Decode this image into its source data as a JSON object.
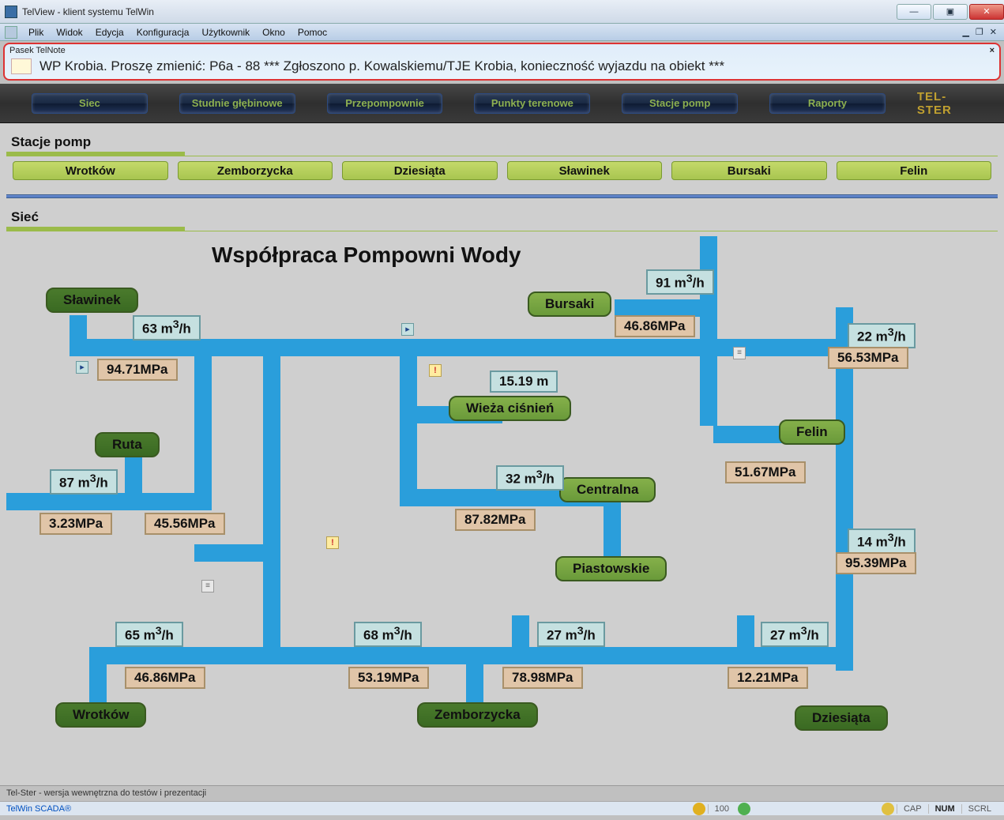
{
  "window": {
    "title": "TelView - klient systemu TelWin"
  },
  "menus": {
    "plik": "Plik",
    "widok": "Widok",
    "edycja": "Edycja",
    "konfiguracja": "Konfiguracja",
    "uzytkownik": "Użytkownik",
    "okno": "Okno",
    "pomoc": "Pomoc"
  },
  "telnote": {
    "header": "Pasek TelNote",
    "message": "WP Krobia. Proszę zmienić: P6a - 88 *** Zgłoszono p. Kowalskiemu/TJE Krobia, konieczność wyjazdu na obiekt ***"
  },
  "toolbar": {
    "b1": "Siec",
    "b2": "Studnie głębinowe",
    "b3": "Przepompownie",
    "b4": "Punkty terenowe",
    "b5": "Stacje pomp",
    "b6": "Raporty",
    "brand": "TEL-STER"
  },
  "section1": {
    "title": "Stacje pomp",
    "t1": "Wrotków",
    "t2": "Zemborzycka",
    "t3": "Dziesiąta",
    "t4": "Sławinek",
    "t5": "Bursaki",
    "t6": "Felin"
  },
  "section2": {
    "title": "Sieć"
  },
  "diagram": {
    "title": "Współpraca Pompowni Wody",
    "nodes": {
      "slawinek": "Sławinek",
      "bursaki": "Bursaki",
      "felin": "Felin",
      "ruta": "Ruta",
      "wieza": "Wieża ciśnień",
      "centralna": "Centralna",
      "piastowskie": "Piastowskie",
      "wrotkow": "Wrotków",
      "zemborzycka": "Zemborzycka",
      "dziesiata": "Dziesiąta"
    },
    "values": {
      "f_slawinek": "63 m³/h",
      "p_slawinek": "94.71MPa",
      "f_bursaki": "91 m³/h",
      "p_bursaki": "46.86MPa",
      "f_felin1": "22 m³/h",
      "p_felin1": "56.53MPa",
      "p_ruta1": "3.23MPa",
      "f_ruta": "87 m³/h",
      "p_ruta2": "45.56MPa",
      "h_wieza": "15.19 m",
      "f_centralna": "32 m³/h",
      "p_centralna": "87.82MPa",
      "p_felin2": "51.67MPa",
      "f_felin3": "14 m³/h",
      "p_felin3": "95.39MPa",
      "f_wrotkow": "65 m³/h",
      "p_wrotkow": "46.86MPa",
      "f_zemb": "68 m³/h",
      "p_zemb": "53.19MPa",
      "f_dz1": "27 m³/h",
      "p_dz1": "78.98MPa",
      "f_dz2": "27 m³/h",
      "p_dz2": "12.21MPa"
    }
  },
  "status": {
    "line1": "Tel-Ster - wersja wewnętrzna do testów i prezentacji",
    "link": "TelWin SCADA®",
    "zoom": "100",
    "cap": "CAP",
    "num": "NUM",
    "scrl": "SCRL"
  },
  "colors": {
    "pipe": "#2a9edb",
    "node": "#6a9a3a",
    "flow_bg": "#c5e0e0",
    "press_bg": "#e0c5a8",
    "background": "#cfcfcf"
  }
}
